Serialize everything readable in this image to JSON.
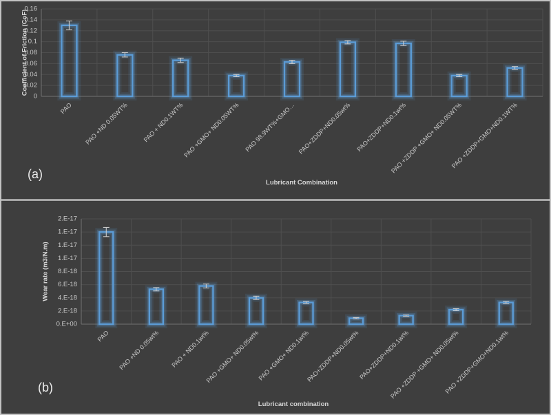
{
  "figure": {
    "background": "#3e3e3e",
    "frame_border_color": "#c3c3c3",
    "separator_color": "#a6a6a6",
    "grid_color": "#4f4f4f",
    "axis_color": "#717171",
    "text_color": "#cbcbcb",
    "title_color": "#d8d8d8",
    "error_bar_color": "#cccccc",
    "bar_color": "#5b9bd5"
  },
  "panels": [
    {
      "label": "(a)"
    },
    {
      "label": "(b)"
    }
  ],
  "chart_data": [
    {
      "id": "cof",
      "type": "bar",
      "panel": "(a)",
      "title": "",
      "xlabel": "Lubricant Combination",
      "ylabel": "Coefficient of Friction (CoF)",
      "categories": [
        "PAO",
        "PAO +ND 0.05WT%",
        "PAO + ND0.1WT%",
        "PAO +GMO+ ND0.05WT%",
        "PAO 98.9WT%+GMO…",
        "PAO+ZDDP+ND0.05wt%",
        "PAO+ZDDP+ND0.1wt%",
        "PAO +ZDDP +GMO+ ND0.05WT%",
        "PAO +ZDDP+GMO+ND0.1WT%"
      ],
      "values": [
        0.13,
        0.076,
        0.066,
        0.038,
        0.063,
        0.099,
        0.097,
        0.038,
        0.052
      ],
      "errors": [
        0.008,
        0.004,
        0.004,
        0.002,
        0.003,
        0.003,
        0.004,
        0.002,
        0.0025
      ],
      "ylim": [
        0,
        0.16
      ],
      "ytick_step": 0.02,
      "ytick_labels": [
        "0",
        "0.02",
        "0.04",
        "0.06",
        "0.08",
        "0.1",
        "0.12",
        "0.14",
        "0.16"
      ],
      "grid": true,
      "legend": false,
      "bar_color": "#5b9bd5"
    },
    {
      "id": "wear",
      "type": "bar",
      "panel": "(b)",
      "title": "",
      "xlabel": "Lubricant combination",
      "ylabel": "Wear rate (m3/N.m)",
      "categories": [
        "PAO",
        "PAO +ND 0.05wt%",
        "PAO + ND0.1wt%",
        "PAO +GMO+ ND0.05wt%",
        "PAO +GMO+ ND0.1wt%",
        "PAO+ZDDP+ND0.05wt%",
        "PAO+ZDDP+ND0.1wt%",
        "PAO +ZDDP +GMO+ ND0.05wt%",
        "PAO +ZDDP+GMO+ND0.1wt%"
      ],
      "values": [
        1.4e-17,
        5.3e-18,
        5.8e-18,
        4e-18,
        3.3e-18,
        9e-19,
        1.3e-18,
        2.2e-18,
        3.3e-18
      ],
      "errors": [
        7e-19,
        2.5e-19,
        3e-19,
        2.5e-19,
        1.5e-19,
        1e-19,
        1e-19,
        1.5e-19,
        1.5e-19
      ],
      "ylim": [
        0,
        1.6e-17
      ],
      "ytick_step": 2e-18,
      "ytick_labels": [
        "0.E+00",
        "2.E-18",
        "4.E-18",
        "6.E-18",
        "8.E-18",
        "1.E-17",
        "1.E-17",
        "1.E-17",
        "2.E-17"
      ],
      "grid": true,
      "legend": false,
      "bar_color": "#5b9bd5"
    }
  ]
}
